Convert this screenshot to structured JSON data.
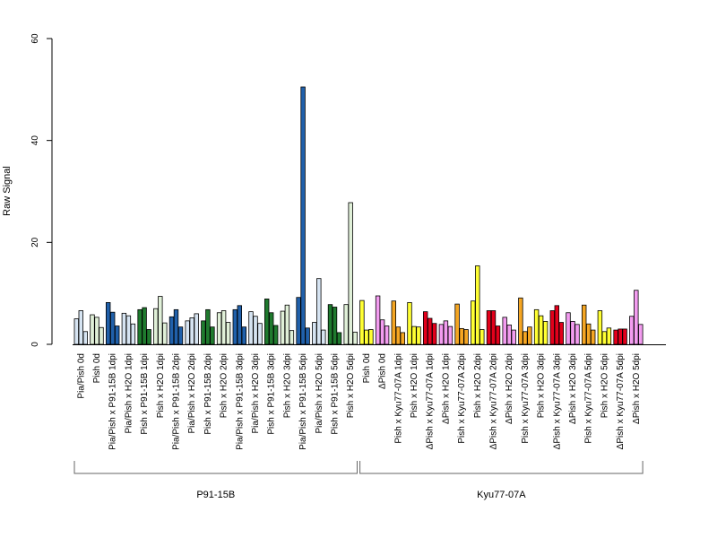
{
  "chart_data": {
    "type": "bar",
    "ylabel": "Raw Signal",
    "ylim": [
      0,
      60
    ],
    "yticks": [
      0,
      20,
      40,
      60
    ],
    "grid": false,
    "bar_border": "#000000",
    "categories": [
      "Pia/Pish 0d",
      "Pish 0d",
      "Pia/Pish x P91-15B 1dpi",
      "Pia/Pish x H2O 1dpi",
      "Pish x P91-15B 1dpi",
      "Pish x H2O 1dpi",
      "Pia/Pish x P91-15B 2dpi",
      "Pia/Pish x H2O 2dpi",
      "Pish x P91-15B 2dpi",
      "Pish x H2O 2dpi",
      "Pia/Pish x P91-15B 3dpi",
      "Pia/Pish x H2O 3dpi",
      "Pish x P91-15B 3dpi",
      "Pish x H2O 3dpi",
      "Pia/Pish x P91-15B 5dpi",
      "Pia/Pish x H2O 5dpi",
      "Pish x P91-15B 5dpi",
      "Pish x H2O 5dpi",
      "Pish 0d",
      "ΔPish 0d",
      "Pish x Kyu77-07A 1dpi",
      "Pish x H2O 1dpi",
      "ΔPish x Kyu77-07A 1dpi",
      "ΔPish x H2O 1dpi",
      "Pish x Kyu77-07A 2dpi",
      "Pish x H2O 2dpi",
      "ΔPish x Kyu77-07A 2dpi",
      "ΔPish x H2O 2dpi",
      "Pish x Kyu77-07A 3dpi",
      "Pish x H2O 3dpi",
      "ΔPish x Kyu77-07A 3dpi",
      "ΔPish x H2O 3dpi",
      "Pish x Kyu77-07A 5dpi",
      "Pish x H2O 5dpi",
      "ΔPish x Kyu77-07A 5dpi",
      "ΔPish x H2O 5dpi"
    ],
    "colors": [
      "#d6e4f2",
      "#e0f0d8",
      "#2060aa",
      "#d6e4f2",
      "#1f7a2e",
      "#e0f0d8",
      "#2060aa",
      "#d6e4f2",
      "#1f7a2e",
      "#e0f0d8",
      "#2060aa",
      "#d6e4f2",
      "#1f7a2e",
      "#e0f0d8",
      "#2060aa",
      "#d6e4f2",
      "#1f7a2e",
      "#e0f0d8",
      "#ffff33",
      "#f39cf0",
      "#f5a623",
      "#ffff33",
      "#e3001b",
      "#f39cf0",
      "#f5a623",
      "#ffff33",
      "#e3001b",
      "#f39cf0",
      "#f5a623",
      "#ffff33",
      "#e3001b",
      "#f39cf0",
      "#f5a623",
      "#ffff33",
      "#e3001b",
      "#f39cf0"
    ],
    "replicates": [
      [
        5.0,
        6.6,
        2.5
      ],
      [
        5.8,
        5.3,
        3.3
      ],
      [
        8.2,
        6.3,
        3.6
      ],
      [
        6.1,
        5.6,
        4.0
      ],
      [
        6.8,
        7.2,
        2.9
      ],
      [
        7.0,
        9.4,
        4.2
      ],
      [
        5.4,
        6.8,
        3.4
      ],
      [
        4.6,
        5.2,
        6.0
      ],
      [
        4.6,
        6.8,
        3.4
      ],
      [
        6.2,
        6.6,
        4.3
      ],
      [
        6.8,
        7.6,
        3.4
      ],
      [
        6.4,
        5.5,
        4.1
      ],
      [
        8.9,
        6.2,
        3.7
      ],
      [
        6.5,
        7.7,
        2.7
      ],
      [
        9.2,
        50.5,
        3.2
      ],
      [
        4.3,
        12.9,
        2.8
      ],
      [
        7.8,
        7.3,
        2.3
      ],
      [
        7.8,
        27.8,
        2.4
      ],
      [
        8.6,
        2.8,
        2.9
      ],
      [
        9.5,
        4.8,
        3.6
      ],
      [
        8.5,
        3.4,
        2.3
      ],
      [
        8.2,
        3.5,
        3.4
      ],
      [
        6.4,
        5.1,
        4.1
      ],
      [
        3.9,
        4.6,
        3.5
      ],
      [
        7.9,
        3.1,
        2.9
      ],
      [
        8.5,
        15.4,
        2.9
      ],
      [
        6.6,
        6.6,
        3.6
      ],
      [
        5.3,
        3.8,
        2.8
      ],
      [
        9.1,
        2.5,
        3.4
      ],
      [
        6.8,
        5.6,
        4.5
      ],
      [
        6.6,
        7.6,
        4.3
      ],
      [
        6.2,
        4.5,
        3.9
      ],
      [
        7.7,
        4.0,
        2.8
      ],
      [
        6.6,
        2.5,
        3.2
      ],
      [
        2.8,
        3.0,
        3.0
      ],
      [
        5.5,
        10.6,
        3.9
      ]
    ],
    "groups": [
      {
        "label": "P91-15B",
        "start": 0,
        "end": 17
      },
      {
        "label": "Kyu77-07A",
        "start": 18,
        "end": 35
      }
    ]
  }
}
